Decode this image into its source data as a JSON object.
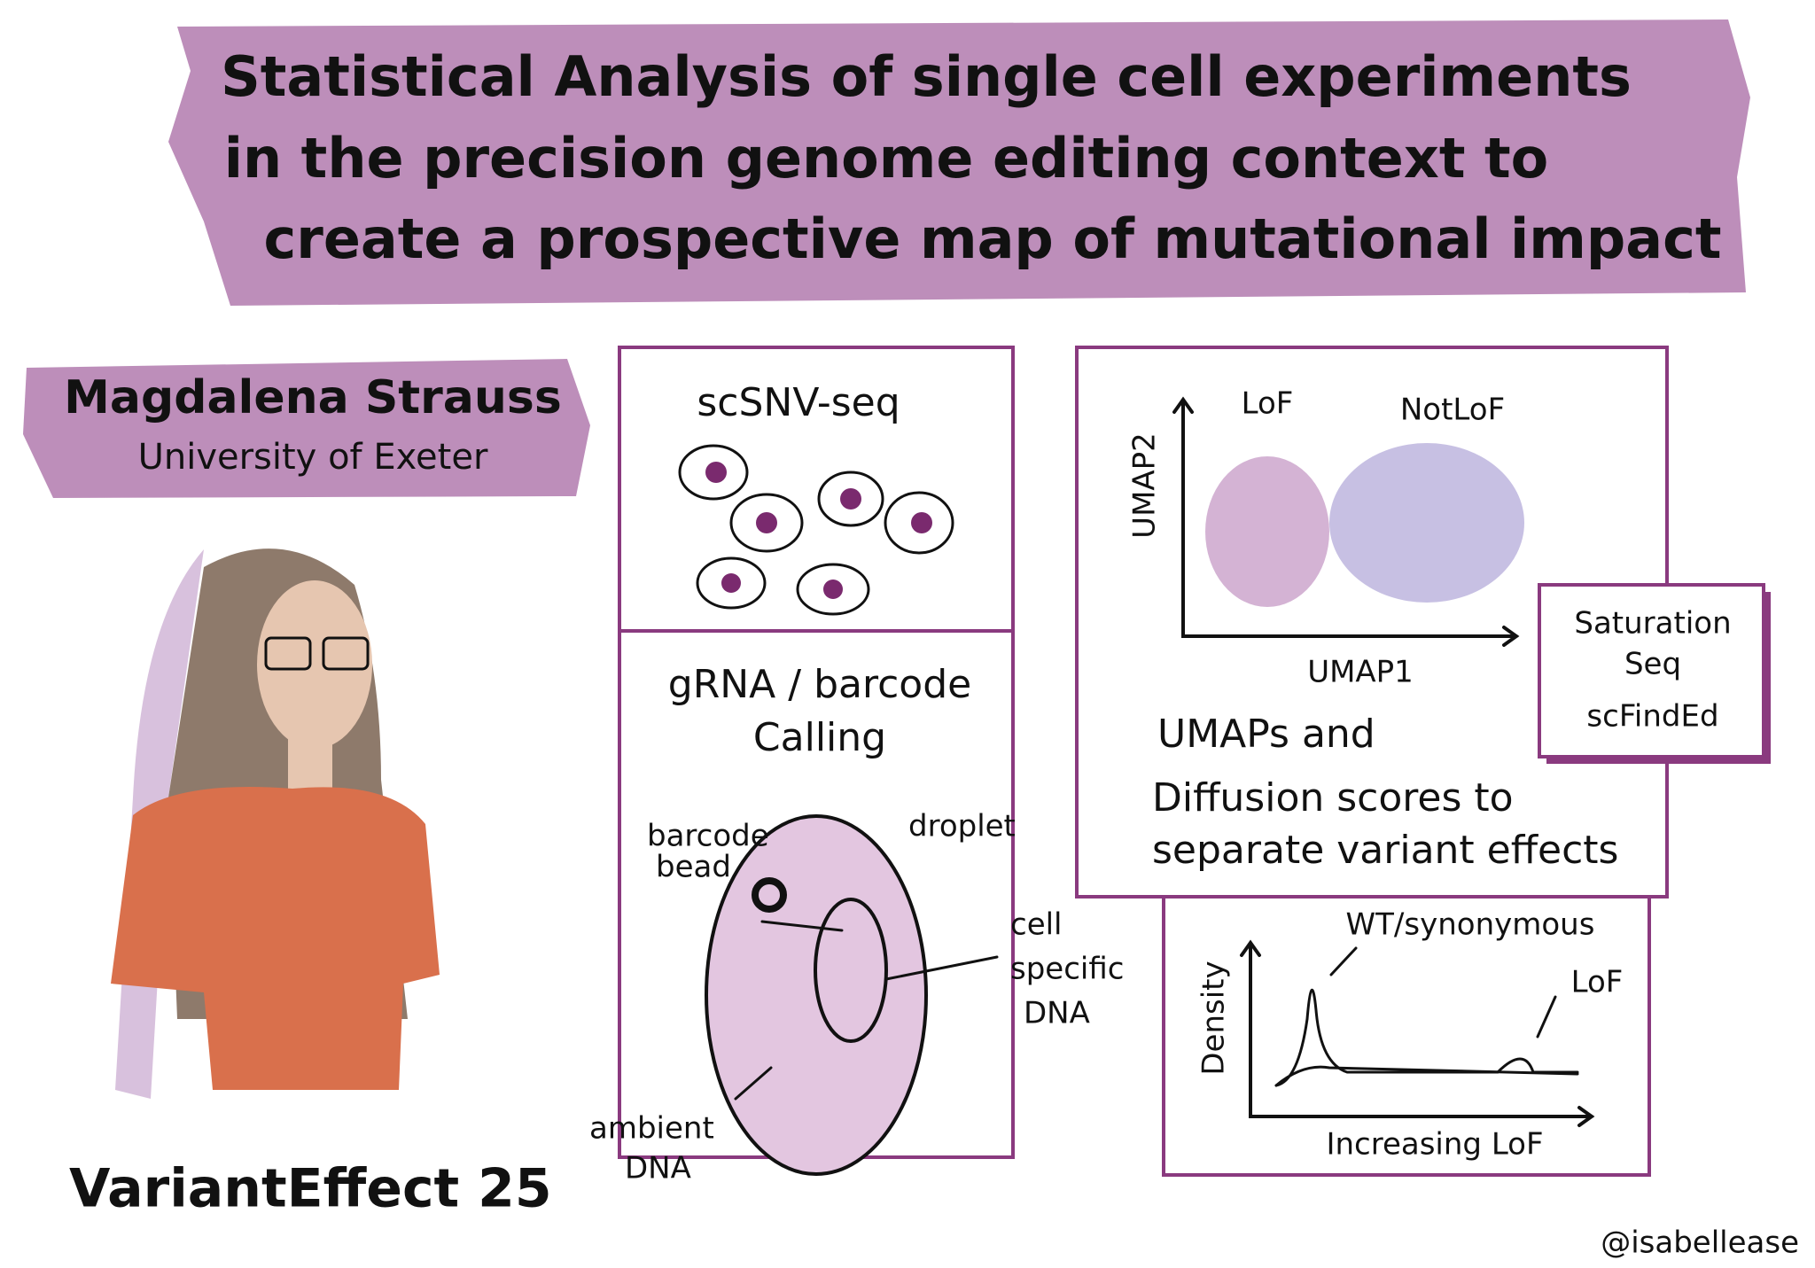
{
  "header": {
    "title": [
      "Statistical Analysis of single cell experiments",
      "in the precision genome editing context to",
      "create a prospective map of mutational impact"
    ]
  },
  "speaker": {
    "name": "Magdalena Strauss",
    "affiliation": "University of Exeter"
  },
  "event": "VariantEffect 25",
  "credit": "@isabellease",
  "panels": {
    "sequencing": {
      "title": "scSNV-seq"
    },
    "calling": {
      "title": [
        "gRNA / barcode",
        "Calling"
      ],
      "labels": {
        "bead": [
          "barcode",
          "bead"
        ],
        "droplet": "droplet",
        "cell_dna": [
          "cell",
          "specific",
          "DNA"
        ],
        "ambient_dna": [
          "ambient",
          "DNA"
        ]
      }
    },
    "umap": {
      "x_label": "UMAP1",
      "y_label": "UMAP2",
      "clusters": [
        "LoF",
        "NotLoF"
      ],
      "caption": [
        "UMAPs and",
        "Diffusion scores to",
        "separate variant effects"
      ]
    },
    "methods": {
      "lines": [
        "Saturation",
        "Seq",
        "scFindEd"
      ]
    },
    "density": {
      "x_label": "Increasing LoF",
      "y_label": "Density",
      "peaks": [
        "WT/synonymous",
        "LoF"
      ]
    }
  }
}
